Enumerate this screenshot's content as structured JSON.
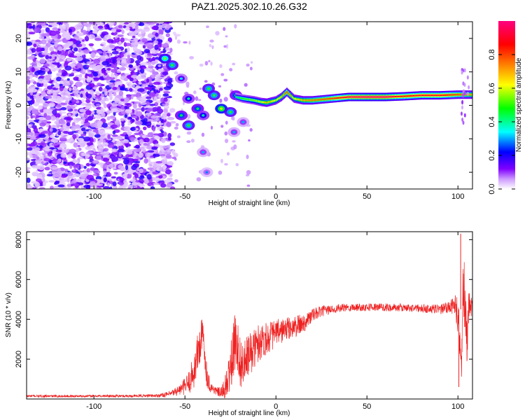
{
  "title": "PAZ1.2025.302.10.26.G32",
  "chart_data": [
    {
      "type": "heatmap",
      "name": "spectrogram",
      "xlabel": "Height of straight line (km)",
      "ylabel": "Frequency (Hz)",
      "xlim": [
        -137,
        108
      ],
      "ylim": [
        -25,
        25
      ],
      "xticks": [
        -100,
        -50,
        0,
        50,
        100
      ],
      "yticks": [
        -20,
        -10,
        0,
        10,
        20
      ],
      "grid": false,
      "noise_region": {
        "x_range": [
          -137,
          -58
        ],
        "y_range": [
          -25,
          25
        ]
      },
      "transition_features": [
        {
          "x": -61,
          "y": 14,
          "value": 0.35
        },
        {
          "x": -57,
          "y": 12,
          "value": 0.3
        },
        {
          "x": -52,
          "y": 8,
          "value": 0.15
        },
        {
          "x": -48,
          "y": 2,
          "value": 0.2
        },
        {
          "x": -52,
          "y": -3,
          "value": 0.25
        },
        {
          "x": -48,
          "y": -6,
          "value": 0.3
        },
        {
          "x": -43,
          "y": -1,
          "value": 0.25
        },
        {
          "x": -40,
          "y": -3,
          "value": 0.2
        },
        {
          "x": -37,
          "y": 5,
          "value": 0.3
        },
        {
          "x": -34,
          "y": 3,
          "value": 0.3
        },
        {
          "x": -30,
          "y": -1,
          "value": 0.45
        },
        {
          "x": -25,
          "y": -2,
          "value": 0.3
        },
        {
          "x": -22,
          "y": 3,
          "value": 0.25
        },
        {
          "x": -40,
          "y": -14,
          "value": 0.1
        },
        {
          "x": -38,
          "y": -20,
          "value": 0.08
        },
        {
          "x": -23,
          "y": -8,
          "value": 0.1
        },
        {
          "x": -18,
          "y": -5,
          "value": 0.1
        }
      ],
      "main_tone": {
        "x": [
          -22,
          -18,
          -12,
          -8,
          -5,
          0,
          3,
          6,
          10,
          15,
          20,
          30,
          40,
          50,
          60,
          70,
          80,
          90,
          100,
          108
        ],
        "y": [
          2.5,
          2.0,
          1.5,
          1.0,
          0.8,
          1.5,
          2.5,
          4.0,
          2.0,
          1.5,
          1.5,
          2.0,
          2.5,
          2.5,
          2.5,
          2.7,
          3.0,
          3.0,
          3.2,
          3.2
        ],
        "amplitude": [
          0.4,
          0.5,
          0.55,
          0.6,
          0.7,
          0.6,
          0.65,
          0.8,
          0.6,
          0.7,
          0.75,
          0.8,
          0.95,
          1.0,
          1.0,
          0.85,
          0.9,
          0.9,
          0.8,
          0.7
        ]
      },
      "colorbar": {
        "label": "Normalized spectral amplitude",
        "range": [
          0.0,
          1.0
        ],
        "ticks": [
          "0.0",
          "0.2",
          "0.4",
          "0.6",
          "0.8"
        ],
        "colors": [
          "#ffffff",
          "#cc99ff",
          "#7f00ff",
          "#0000ff",
          "#00ffff",
          "#00ff00",
          "#ffff00",
          "#ff8000",
          "#ff0000",
          "#ff0080"
        ]
      }
    },
    {
      "type": "line",
      "name": "snr",
      "xlabel": "Height of straight line (km)",
      "ylabel": "SNR (10 * v/v)",
      "xlim": [
        -137,
        108
      ],
      "ylim": [
        0,
        8400
      ],
      "xticks": [
        -100,
        -50,
        0,
        50,
        100
      ],
      "yticks": [
        2000,
        4000,
        6000,
        8000
      ],
      "grid": false,
      "series": [
        {
          "name": "SNR",
          "color": "#ee2222",
          "x": [
            -137,
            -120,
            -100,
            -80,
            -65,
            -58,
            -52,
            -48,
            -45,
            -42,
            -40,
            -38,
            -36,
            -33,
            -30,
            -27,
            -24,
            -22,
            -20,
            -18,
            -15,
            -12,
            -10,
            -7,
            -4,
            0,
            5,
            10,
            15,
            20,
            25,
            30,
            35,
            40,
            50,
            60,
            70,
            80,
            90,
            95,
            98,
            100,
            102,
            103,
            104,
            105,
            106,
            108
          ],
          "y": [
            150,
            140,
            150,
            150,
            170,
            250,
            500,
            800,
            1400,
            2700,
            3200,
            1200,
            600,
            400,
            300,
            700,
            2000,
            3200,
            2000,
            1600,
            2200,
            2500,
            2800,
            3000,
            3100,
            3300,
            3500,
            3600,
            3800,
            4200,
            4400,
            4500,
            4550,
            4600,
            4620,
            4600,
            4580,
            4550,
            4500,
            4600,
            4700,
            4200,
            1200,
            6000,
            4800,
            2500,
            4800,
            4600
          ],
          "spread": [
            60,
            60,
            60,
            70,
            80,
            150,
            300,
            600,
            900,
            1200,
            1000,
            600,
            300,
            200,
            300,
            800,
            1400,
            1500,
            1300,
            1200,
            1100,
            1000,
            1000,
            900,
            800,
            700,
            600,
            550,
            500,
            350,
            280,
            220,
            200,
            200,
            200,
            200,
            200,
            200,
            250,
            300,
            450,
            1200,
            900,
            2000,
            1500,
            1200,
            900,
            400
          ]
        }
      ],
      "peaks": [
        {
          "x": 101.5,
          "y": 8300
        },
        {
          "x": 100.5,
          "y": 600
        }
      ]
    }
  ]
}
